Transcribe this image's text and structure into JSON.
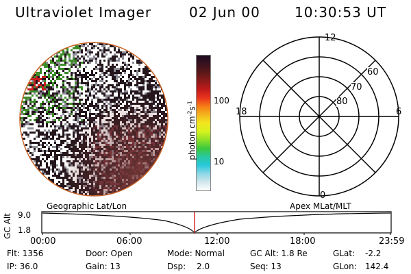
{
  "header": {
    "title": "Ultraviolet Imager",
    "date": "02 Jun 00",
    "time": "10:30:53 UT"
  },
  "colorbar": {
    "label": "photon cm",
    "label_sup1": "-2",
    "label_mid": "s",
    "label_sup2": "-1",
    "ticks": [
      "100",
      "10"
    ],
    "colors": [
      "#1a0b1e",
      "#3a1220",
      "#5a1818",
      "#8b1a1a",
      "#c01a1a",
      "#e8321e",
      "#f57b14",
      "#f5b41e",
      "#f2e61e",
      "#d6f21e",
      "#8fe028",
      "#3cc83c",
      "#28c8a0",
      "#28c8dc",
      "#8cd7e6",
      "#d2e6ec",
      "#ffffff"
    ]
  },
  "polar": {
    "labels": {
      "top": "12",
      "bottom": "0",
      "left": "18",
      "right": "6"
    },
    "rings": [
      "60",
      "70",
      "80"
    ]
  },
  "track": {
    "left_label": "Geographic Lat/Lon",
    "right_label": "Apex MLat/MLT",
    "axis_title": "GC Alt",
    "y_ticks": [
      "9.0",
      "1.8"
    ],
    "x_ticks": [
      "00:00",
      "06:00",
      "12:00",
      "18:00",
      "23:59"
    ]
  },
  "info": {
    "flt": "Flt: 1356",
    "ip": "IP: 36.0",
    "door": "Door: Open",
    "gain": "Gain: 13",
    "mode": "Mode: Normal",
    "dsp_label": "Dsp:",
    "dsp_value": "2.0",
    "gc_alt": "GC Alt: 1.8 Re",
    "seq": "Seq: 13",
    "glat_label": "GLat:",
    "glat_value": "-2.2",
    "glon_label": "GLon:",
    "glon_value": "142.4"
  },
  "colors": {
    "disk_dark": "#24161c",
    "disk_rim": "#c86428",
    "green": "#3c8c28",
    "red": "#c81e1e",
    "marker": "#c80000"
  }
}
